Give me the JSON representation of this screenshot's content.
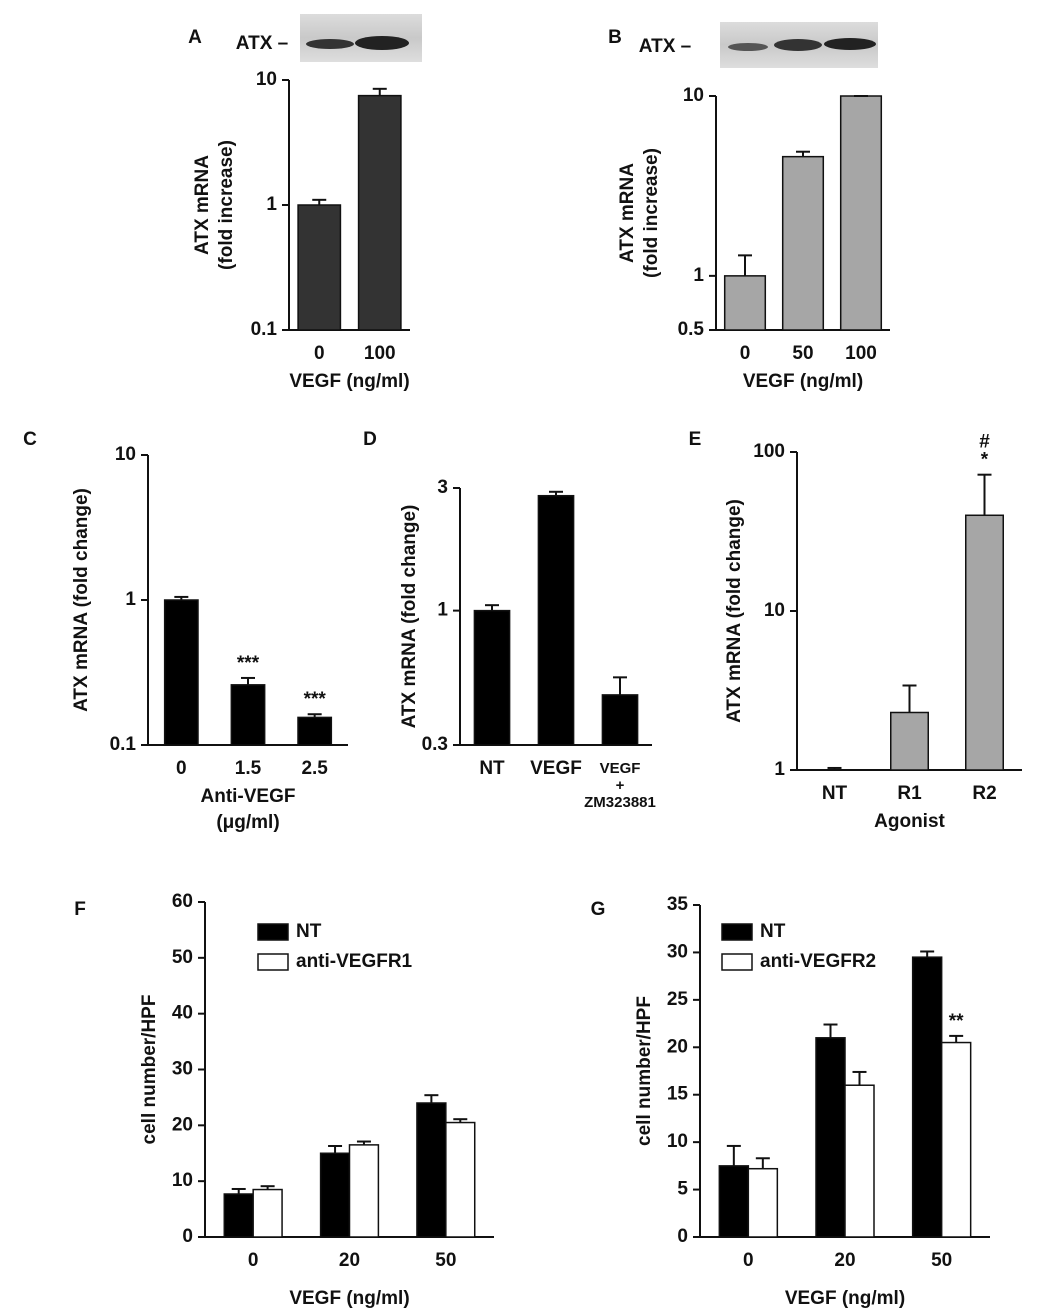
{
  "chart_data": [
    {
      "type": "bar",
      "panel": "A",
      "blot_label": "ATX –",
      "log": true,
      "ylabel": [
        "ATX mRNA",
        "(fold increase)"
      ],
      "xlabel": [
        "VEGF (ng/ml)"
      ],
      "categories": [
        "0",
        "100"
      ],
      "values": [
        1,
        7.5
      ],
      "errors": [
        0.1,
        1.0
      ],
      "color": "#333333",
      "ylim": [
        0.1,
        10
      ],
      "yticks": [
        0.1,
        1,
        10
      ]
    },
    {
      "type": "bar",
      "panel": "B",
      "blot_label": "ATX –",
      "log": true,
      "ylabel": [
        "ATX mRNA",
        "(fold increase)"
      ],
      "xlabel": [
        "VEGF (ng/ml)"
      ],
      "categories": [
        "0",
        "50",
        "100"
      ],
      "values": [
        1,
        4.6,
        10
      ],
      "errors": [
        0.3,
        0.3,
        0
      ],
      "color": "#a6a6a6",
      "ylim": [
        0.5,
        10
      ],
      "yticks": [
        0.5,
        1,
        10
      ]
    },
    {
      "type": "bar",
      "panel": "C",
      "log": true,
      "ylabel": [
        "ATX mRNA (fold change)"
      ],
      "xlabel": [
        "Anti-VEGF",
        "(μg/ml)"
      ],
      "categories": [
        "0",
        "1.5",
        "2.5"
      ],
      "values": [
        1,
        0.26,
        0.155
      ],
      "errors": [
        0.05,
        0.03,
        0.008
      ],
      "color": "#000000",
      "annotations": [
        null,
        [
          "***"
        ],
        [
          "***"
        ]
      ],
      "ylim": [
        0.1,
        10
      ],
      "yticks": [
        0.1,
        1,
        10
      ]
    },
    {
      "type": "bar",
      "panel": "D",
      "log": true,
      "ylabel": [
        "ATX mRNA (fold change)"
      ],
      "categories": [
        "NT",
        "VEGF",
        "VEGF + ZM323881"
      ],
      "values": [
        1,
        2.8,
        0.47
      ],
      "errors": [
        0.05,
        0.1,
        0.08
      ],
      "color": "#000000",
      "ylim": [
        0.3,
        3
      ],
      "yticks": [
        0.3,
        1,
        3
      ]
    },
    {
      "type": "bar",
      "panel": "E",
      "log": true,
      "ylabel": [
        "ATX mRNA (fold change)"
      ],
      "xlabel": [
        "Agonist"
      ],
      "categories": [
        "NT",
        "R1",
        "R2"
      ],
      "values": [
        1,
        2.3,
        40
      ],
      "errors": [
        0.03,
        1.1,
        32
      ],
      "color": "#a6a6a6",
      "annotations": [
        null,
        null,
        [
          "#",
          "*"
        ]
      ],
      "ylim": [
        1,
        100
      ],
      "yticks": [
        1,
        10,
        100
      ]
    },
    {
      "type": "bar",
      "panel": "F",
      "ylabel": [
        "cell number/HPF"
      ],
      "xlabel": [
        "VEGF (ng/ml)"
      ],
      "categories": [
        "0",
        "20",
        "50"
      ],
      "series": [
        {
          "name": "NT",
          "color": "#000000",
          "values": [
            7.7,
            15,
            24
          ],
          "errors": [
            0.9,
            1.3,
            1.4
          ]
        },
        {
          "name": "anti-VEGFR1",
          "color": "#ffffff",
          "values": [
            8.5,
            16.5,
            20.5
          ],
          "errors": [
            0.6,
            0.6,
            0.6
          ]
        }
      ],
      "ylim": [
        0,
        60
      ],
      "yticks": [
        0,
        10,
        20,
        30,
        40,
        50,
        60
      ]
    },
    {
      "type": "bar",
      "panel": "G",
      "ylabel": [
        "cell number/HPF"
      ],
      "xlabel": [
        "VEGF (ng/ml)"
      ],
      "categories": [
        "0",
        "20",
        "50"
      ],
      "series": [
        {
          "name": "NT",
          "color": "#000000",
          "values": [
            7.5,
            21,
            29.5
          ],
          "errors": [
            2.1,
            1.4,
            0.6
          ]
        },
        {
          "name": "anti-VEGFR2",
          "color": "#ffffff",
          "values": [
            7.2,
            16,
            20.5
          ],
          "errors": [
            1.1,
            1.4,
            0.7
          ],
          "annotations": [
            null,
            null,
            [
              "**"
            ]
          ]
        }
      ],
      "ylim": [
        0,
        35
      ],
      "yticks": [
        0,
        5,
        10,
        15,
        20,
        25,
        30,
        35
      ]
    }
  ]
}
